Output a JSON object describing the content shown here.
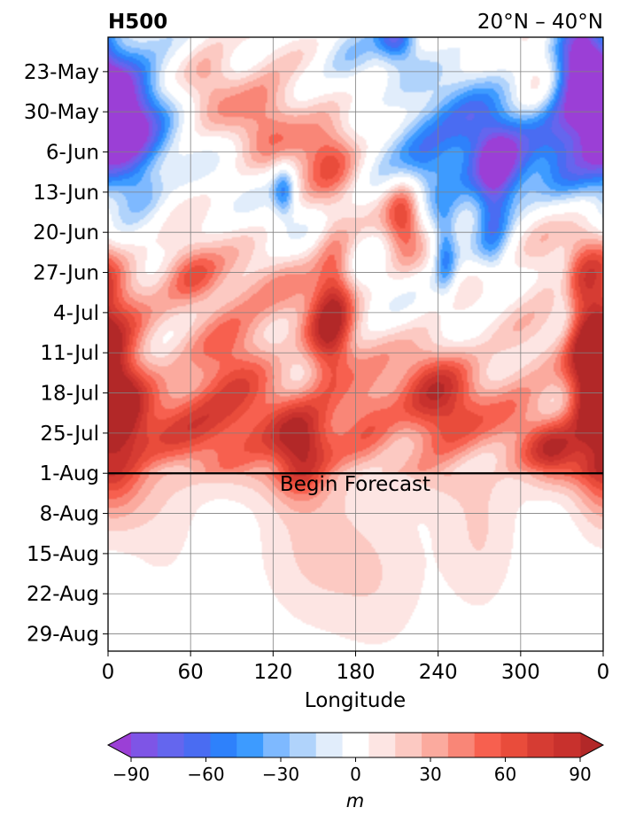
{
  "chart_data": {
    "type": "heatmap",
    "title_left": "H500",
    "title_right": "20°N – 40°N",
    "xlabel": "Longitude",
    "x_ticks": [
      "0",
      "60",
      "120",
      "180",
      "240",
      "300",
      "0"
    ],
    "x_range": [
      0,
      360
    ],
    "y_ticks": [
      "23-May",
      "30-May",
      "6-Jun",
      "13-Jun",
      "20-Jun",
      "27-Jun",
      "4-Jul",
      "11-Jul",
      "18-Jul",
      "25-Jul",
      "1-Aug",
      "8-Aug",
      "15-Aug",
      "22-Aug",
      "29-Aug"
    ],
    "y_range": [
      "2021-05-17",
      "2021-09-01"
    ],
    "grid": true,
    "forecast_line": {
      "date": "1-Aug",
      "label": "Begin Forecast"
    },
    "colorbar": {
      "label": "m",
      "tick_labels": [
        "−90",
        "−60",
        "−30",
        "0",
        "30",
        "60",
        "90"
      ],
      "levels": [
        -100,
        -90,
        -80,
        -70,
        -60,
        -50,
        -40,
        -30,
        -20,
        -10,
        10,
        20,
        30,
        40,
        50,
        60,
        70,
        80,
        90,
        100
      ],
      "colors": [
        "#9b3fd6",
        "#7e55e6",
        "#6466ee",
        "#4a6cf2",
        "#2e81fb",
        "#3d9bff",
        "#7eb9ff",
        "#b0d3fb",
        "#e1edfb",
        "#ffffff",
        "#fde5e3",
        "#fcc9c2",
        "#fbaa9e",
        "#f98677",
        "#f7604f",
        "#e94c3b",
        "#d63c33",
        "#c8312d",
        "#b22828"
      ],
      "extend": "both"
    },
    "field_features": [
      {
        "lon": 10,
        "date": "2021-05-28",
        "value": -70,
        "sigma_lon": 22,
        "sigma_days": 8
      },
      {
        "lon": 12,
        "date": "2021-06-05",
        "value": -50,
        "sigma_lon": 18,
        "sigma_days": 6
      },
      {
        "lon": 175,
        "date": "2021-05-22",
        "value": -25,
        "sigma_lon": 15,
        "sigma_days": 4
      },
      {
        "lon": 210,
        "date": "2021-05-17",
        "value": -70,
        "sigma_lon": 10,
        "sigma_days": 3
      },
      {
        "lon": 230,
        "date": "2021-06-06",
        "value": -55,
        "sigma_lon": 20,
        "sigma_days": 6
      },
      {
        "lon": 268,
        "date": "2021-06-02",
        "value": -45,
        "sigma_lon": 20,
        "sigma_days": 8
      },
      {
        "lon": 285,
        "date": "2021-06-09",
        "value": -75,
        "sigma_lon": 14,
        "sigma_days": 5
      },
      {
        "lon": 280,
        "date": "2021-06-18",
        "value": -40,
        "sigma_lon": 8,
        "sigma_days": 7
      },
      {
        "lon": 335,
        "date": "2021-05-31",
        "value": -80,
        "sigma_lon": 25,
        "sigma_days": 9
      },
      {
        "lon": 345,
        "date": "2021-05-20",
        "value": -65,
        "sigma_lon": 12,
        "sigma_days": 5
      },
      {
        "lon": 245,
        "date": "2021-06-24",
        "value": -55,
        "sigma_lon": 6,
        "sigma_days": 5
      },
      {
        "lon": 128,
        "date": "2021-06-13",
        "value": -55,
        "sigma_lon": 6,
        "sigma_days": 3
      },
      {
        "lon": 25,
        "date": "2021-06-13",
        "value": -18,
        "sigma_lon": 10,
        "sigma_days": 3
      },
      {
        "lon": 330,
        "date": "2021-06-30",
        "value": -20,
        "sigma_lon": 6,
        "sigma_days": 5
      },
      {
        "lon": 75,
        "date": "2021-05-24",
        "value": 35,
        "sigma_lon": 14,
        "sigma_days": 5
      },
      {
        "lon": 115,
        "date": "2021-05-30",
        "value": 50,
        "sigma_lon": 18,
        "sigma_days": 6
      },
      {
        "lon": 160,
        "date": "2021-06-06",
        "value": 65,
        "sigma_lon": 16,
        "sigma_days": 5
      },
      {
        "lon": 215,
        "date": "2021-06-17",
        "value": 75,
        "sigma_lon": 10,
        "sigma_days": 5
      },
      {
        "lon": 315,
        "date": "2021-05-23",
        "value": 50,
        "sigma_lon": 14,
        "sigma_days": 6
      },
      {
        "lon": 60,
        "date": "2021-06-27",
        "value": 60,
        "sigma_lon": 16,
        "sigma_days": 4
      },
      {
        "lon": 165,
        "date": "2021-06-28",
        "value": 50,
        "sigma_lon": 10,
        "sigma_days": 7
      },
      {
        "lon": 160,
        "date": "2021-07-10",
        "value": 70,
        "sigma_lon": 12,
        "sigma_days": 6
      },
      {
        "lon": 5,
        "date": "2021-07-12",
        "value": 75,
        "sigma_lon": 18,
        "sigma_days": 10
      },
      {
        "lon": 5,
        "date": "2021-07-28",
        "value": 65,
        "sigma_lon": 16,
        "sigma_days": 8
      },
      {
        "lon": 350,
        "date": "2021-07-10",
        "value": 65,
        "sigma_lon": 12,
        "sigma_days": 14
      },
      {
        "lon": 240,
        "date": "2021-07-20",
        "value": 80,
        "sigma_lon": 22,
        "sigma_days": 8
      },
      {
        "lon": 120,
        "date": "2021-07-25",
        "value": 50,
        "sigma_lon": 40,
        "sigma_days": 6
      },
      {
        "lon": 140,
        "date": "2021-07-29",
        "value": 65,
        "sigma_lon": 14,
        "sigma_days": 5
      },
      {
        "lon": 60,
        "date": "2021-07-22",
        "value": 50,
        "sigma_lon": 30,
        "sigma_days": 6
      },
      {
        "lon": 90,
        "date": "2021-07-10",
        "value": 40,
        "sigma_lon": 20,
        "sigma_days": 8
      },
      {
        "lon": 190,
        "date": "2021-07-20",
        "value": 45,
        "sigma_lon": 15,
        "sigma_days": 6
      },
      {
        "lon": 300,
        "date": "2021-07-20",
        "value": 40,
        "sigma_lon": 20,
        "sigma_days": 8
      },
      {
        "lon": 325,
        "date": "2021-07-28",
        "value": 65,
        "sigma_lon": 14,
        "sigma_days": 4
      },
      {
        "lon": 320,
        "date": "2021-06-26",
        "value": 30,
        "sigma_lon": 20,
        "sigma_days": 6
      },
      {
        "lon": 130,
        "date": "2021-07-02",
        "value": 30,
        "sigma_lon": 30,
        "sigma_days": 6
      },
      {
        "lon": 150,
        "date": "2021-08-14",
        "value": 22,
        "sigma_lon": 30,
        "sigma_days": 10
      },
      {
        "lon": 270,
        "date": "2021-08-12",
        "value": 20,
        "sigma_lon": 20,
        "sigma_days": 10
      },
      {
        "lon": 40,
        "date": "2021-08-08",
        "value": 15,
        "sigma_lon": 20,
        "sigma_days": 10
      },
      {
        "lon": 200,
        "date": "2021-08-20",
        "value": 15,
        "sigma_lon": 25,
        "sigma_days": 10
      }
    ]
  }
}
